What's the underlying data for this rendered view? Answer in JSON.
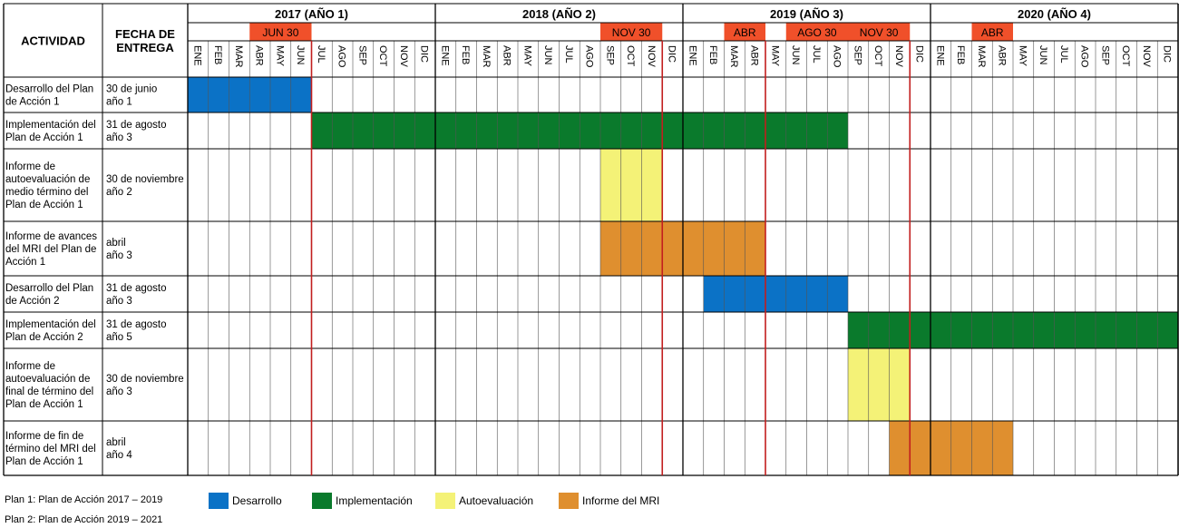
{
  "chart_data": {
    "type": "gantt",
    "headers": {
      "activity": "ACTIVIDAD",
      "delivery_line1": "FECHA DE",
      "delivery_line2": "ENTREGA"
    },
    "years": [
      {
        "label": "2017 (AÑO 1)"
      },
      {
        "label": "2018 (AÑO 2)"
      },
      {
        "label": "2019 (AÑO 3)"
      },
      {
        "label": "2020 (AÑO 4)"
      }
    ],
    "months": [
      "ENE",
      "FEB",
      "MAR",
      "ABR",
      "MAY",
      "JUN",
      "JUL",
      "AGO",
      "SEP",
      "OCT",
      "NOV",
      "DIC"
    ],
    "deadline_markers": [
      {
        "label": "JUN 30",
        "start": 3,
        "end": 6
      },
      {
        "label": "NOV 30",
        "start": 20,
        "end": 23
      },
      {
        "label": "ABR",
        "start": 26,
        "end": 28
      },
      {
        "label": "AGO 30",
        "start": 29,
        "end": 32
      },
      {
        "label": "NOV 30",
        "start": 32,
        "end": 35
      },
      {
        "label": "ABR",
        "start": 38,
        "end": 40
      }
    ],
    "deadline_lines": [
      6,
      23,
      28,
      35
    ],
    "colors": {
      "desarrollo": "#0B72C6",
      "implementacion": "#0A7A2C",
      "autoevaluacion": "#F4F277",
      "informe": "#DF8F2F",
      "marker": "#F0502A",
      "deadline_line": "#C21E1E",
      "grid": "#555555"
    },
    "rows": [
      {
        "activity": [
          "Desarrollo del Plan",
          "de Acción 1"
        ],
        "delivery": [
          "30 de junio",
          "año 1"
        ],
        "start": 0,
        "end": 6,
        "category": "desarrollo"
      },
      {
        "activity": [
          "Implementación del",
          "Plan de Acción 1"
        ],
        "delivery": [
          "31 de agosto",
          "año 3"
        ],
        "start": 6,
        "end": 32,
        "category": "implementacion"
      },
      {
        "activity": [
          "Informe de",
          "autoevaluación de",
          "medio término del",
          "Plan de Acción 1"
        ],
        "delivery": [
          "30 de noviembre",
          "año 2"
        ],
        "start": 20,
        "end": 23,
        "category": "autoevaluacion"
      },
      {
        "activity": [
          "Informe de avances",
          "del MRI del Plan de",
          "Acción 1"
        ],
        "delivery": [
          "abril",
          "año 3"
        ],
        "start": 20,
        "end": 28,
        "category": "informe"
      },
      {
        "activity": [
          "Desarrollo del Plan",
          "de Acción 2"
        ],
        "delivery": [
          "31 de agosto",
          "año 3"
        ],
        "start": 25,
        "end": 32,
        "category": "desarrollo"
      },
      {
        "activity": [
          "Implementación del",
          "Plan de Acción 2"
        ],
        "delivery": [
          "31 de agosto",
          "año 5"
        ],
        "start": 32,
        "end": 48,
        "category": "implementacion"
      },
      {
        "activity": [
          "Informe de",
          "autoevaluación de",
          "final de término del",
          "Plan de Acción 1"
        ],
        "delivery": [
          "30 de noviembre",
          "año 3"
        ],
        "start": 32,
        "end": 35,
        "category": "autoevaluacion"
      },
      {
        "activity": [
          "Informe de fin de",
          "término del MRI del",
          "Plan de Acción 1"
        ],
        "delivery": [
          "abril",
          "año 4"
        ],
        "start": 34,
        "end": 40,
        "category": "informe"
      }
    ],
    "legend": [
      {
        "label": "Desarrollo",
        "category": "desarrollo"
      },
      {
        "label": "Implementación",
        "category": "implementacion"
      },
      {
        "label": "Autoevaluación",
        "category": "autoevaluacion"
      },
      {
        "label": "Informe del MRI",
        "category": "informe"
      }
    ]
  },
  "notes": {
    "plan1": "Plan 1: Plan de Acción 2017 – 2019",
    "plan2": "Plan 2: Plan de Acción 2019 – 2021"
  }
}
